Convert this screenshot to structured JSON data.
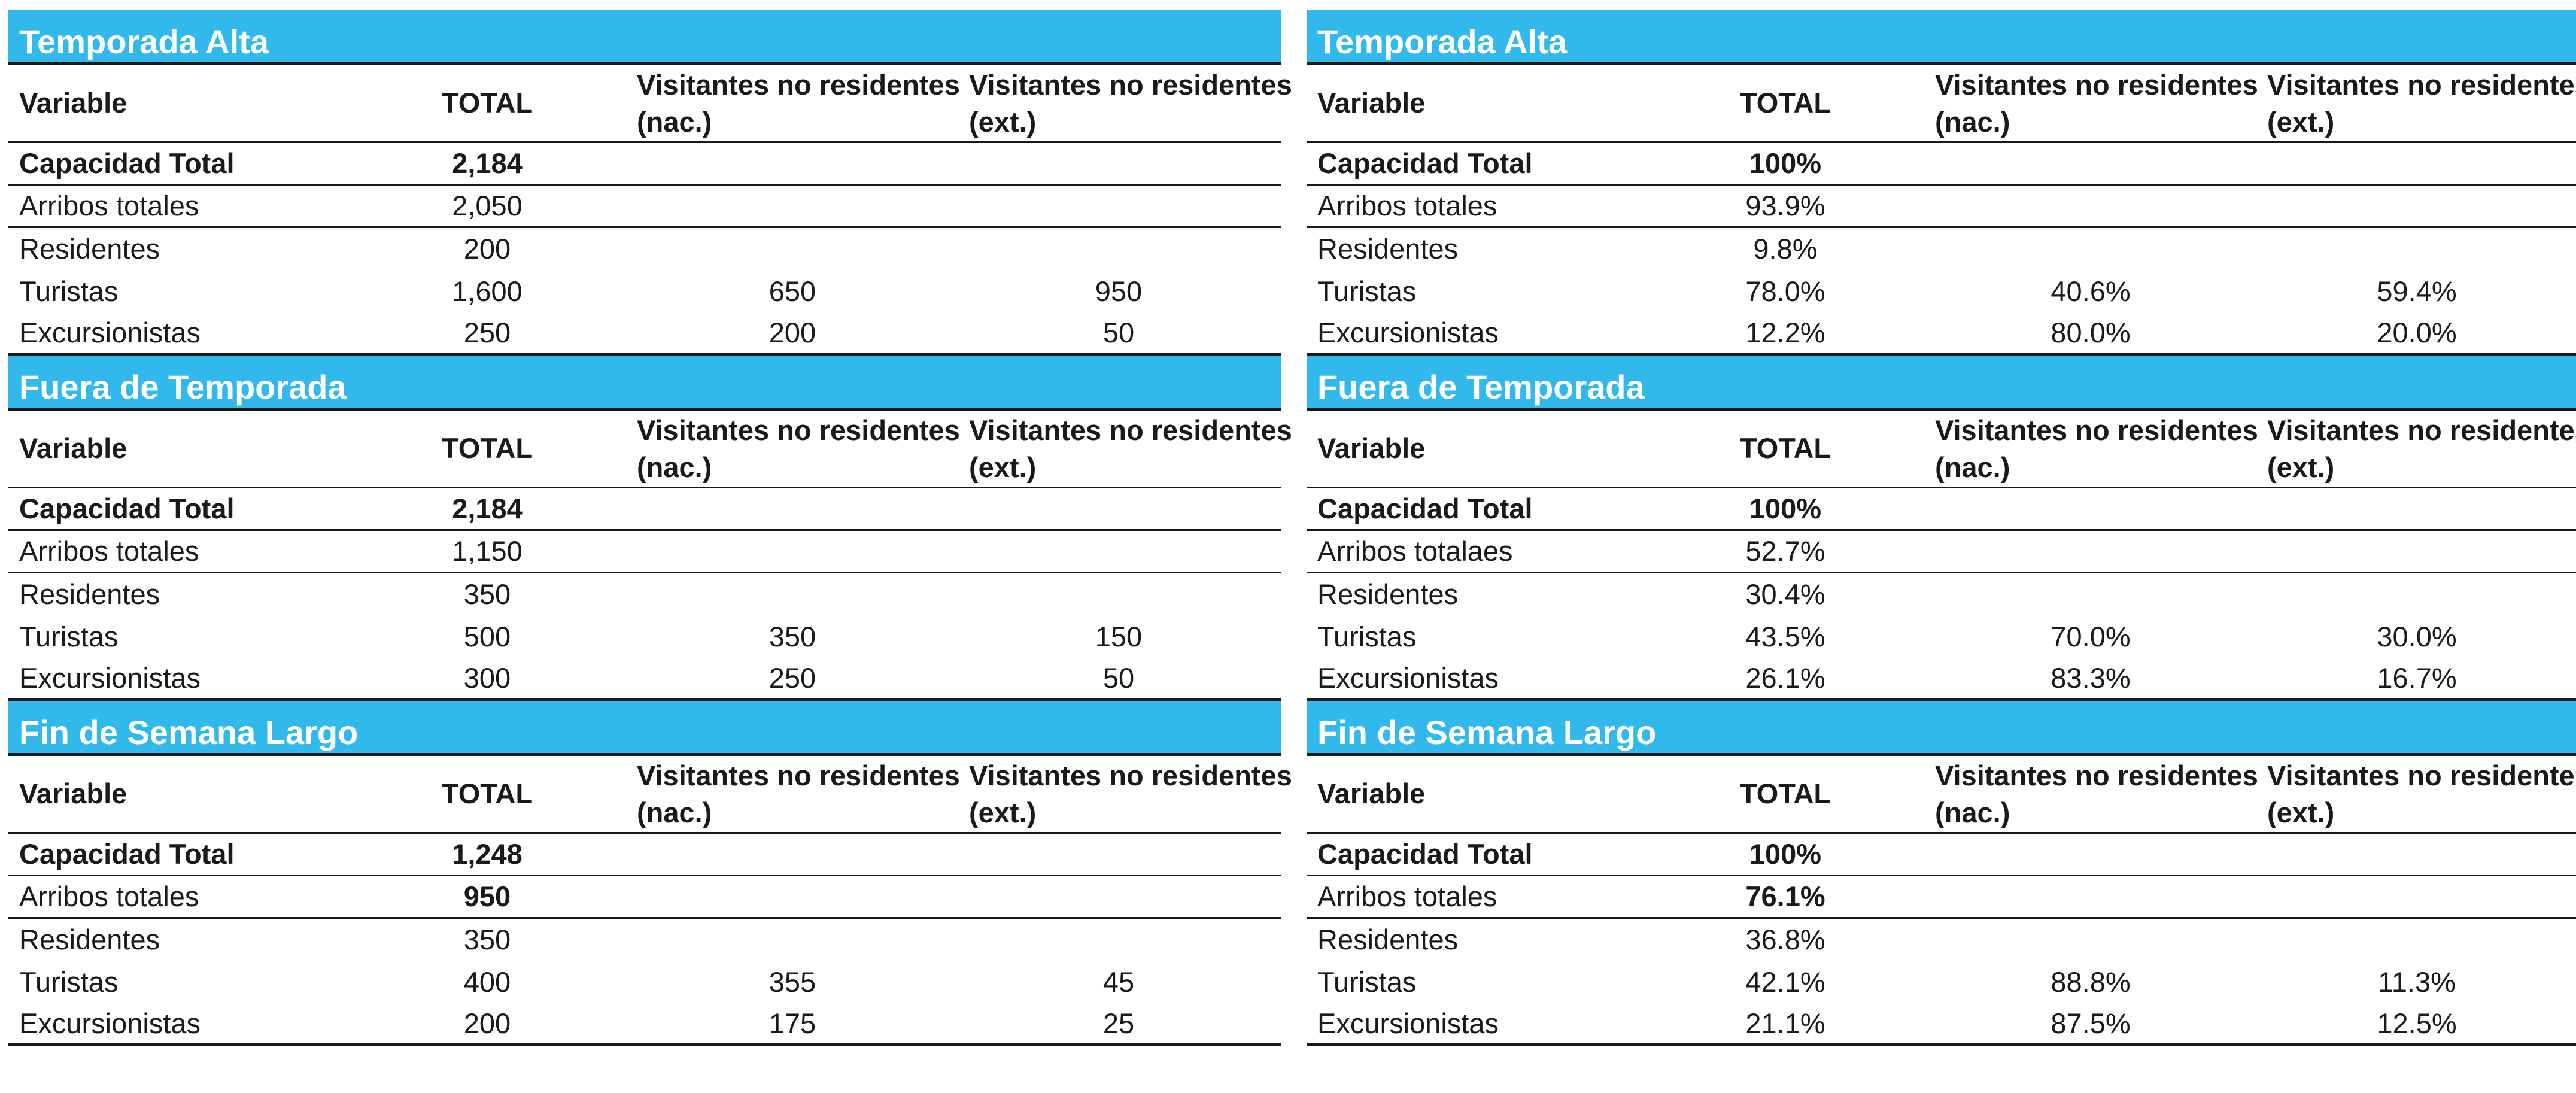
{
  "header": {
    "variable": "Variable",
    "total": "TOTAL",
    "nac": "Visitantes no residentes (nac.)",
    "ext": "Visitantes no residentes (ext.)"
  },
  "left": {
    "sections": [
      {
        "title": "Temporada Alta",
        "rows": [
          {
            "label": "Capacidad Total",
            "total": "2,184",
            "nac": "",
            "ext": ""
          },
          {
            "label": "Arribos totales",
            "total": "2,050",
            "nac": "",
            "ext": ""
          },
          {
            "label": "Residentes",
            "total": "200",
            "nac": "",
            "ext": ""
          },
          {
            "label": "Turistas",
            "total": "1,600",
            "nac": "650",
            "ext": "950"
          },
          {
            "label": "Excursionistas",
            "total": "250",
            "nac": "200",
            "ext": "50"
          }
        ]
      },
      {
        "title": "Fuera de Temporada",
        "rows": [
          {
            "label": "Capacidad Total",
            "total": "2,184",
            "nac": "",
            "ext": ""
          },
          {
            "label": "Arribos totales",
            "total": "1,150",
            "nac": "",
            "ext": ""
          },
          {
            "label": "Residentes",
            "total": "350",
            "nac": "",
            "ext": ""
          },
          {
            "label": "Turistas",
            "total": "500",
            "nac": "350",
            "ext": "150"
          },
          {
            "label": "Excursionistas",
            "total": "300",
            "nac": "250",
            "ext": "50"
          }
        ]
      },
      {
        "title": "Fin de Semana Largo",
        "rows": [
          {
            "label": "Capacidad Total",
            "total": "1,248",
            "nac": "",
            "ext": ""
          },
          {
            "label": "Arribos totales",
            "total": "950",
            "nac": "",
            "ext": ""
          },
          {
            "label": "Residentes",
            "total": "350",
            "nac": "",
            "ext": ""
          },
          {
            "label": "Turistas",
            "total": "400",
            "nac": "355",
            "ext": "45"
          },
          {
            "label": "Excursionistas",
            "total": "200",
            "nac": "175",
            "ext": "25"
          }
        ]
      }
    ]
  },
  "right": {
    "sections": [
      {
        "title": "Temporada Alta",
        "rows": [
          {
            "label": "Capacidad Total",
            "total": "100%",
            "nac": "",
            "ext": ""
          },
          {
            "label": "Arribos totales",
            "total": "93.9%",
            "nac": "",
            "ext": ""
          },
          {
            "label": "Residentes",
            "total": "9.8%",
            "nac": "",
            "ext": ""
          },
          {
            "label": "Turistas",
            "total": "78.0%",
            "nac": "40.6%",
            "ext": "59.4%"
          },
          {
            "label": "Excursionistas",
            "total": "12.2%",
            "nac": "80.0%",
            "ext": "20.0%"
          }
        ]
      },
      {
        "title": "Fuera de Temporada",
        "rows": [
          {
            "label": "Capacidad Total",
            "total": "100%",
            "nac": "",
            "ext": ""
          },
          {
            "label": "Arribos totalaes",
            "total": "52.7%",
            "nac": "",
            "ext": ""
          },
          {
            "label": "Residentes",
            "total": "30.4%",
            "nac": "",
            "ext": ""
          },
          {
            "label": "Turistas",
            "total": "43.5%",
            "nac": "70.0%",
            "ext": "30.0%"
          },
          {
            "label": "Excursionistas",
            "total": "26.1%",
            "nac": "83.3%",
            "ext": "16.7%"
          }
        ]
      },
      {
        "title": "Fin de Semana Largo",
        "rows": [
          {
            "label": "Capacidad Total",
            "total": "100%",
            "nac": "",
            "ext": ""
          },
          {
            "label": "Arribos totales",
            "total": "76.1%",
            "nac": "",
            "ext": ""
          },
          {
            "label": "Residentes",
            "total": "36.8%",
            "nac": "",
            "ext": ""
          },
          {
            "label": "Turistas",
            "total": "42.1%",
            "nac": "88.8%",
            "ext": "11.3%"
          },
          {
            "label": "Excursionistas",
            "total": "21.1%",
            "nac": "87.5%",
            "ext": "12.5%"
          }
        ]
      }
    ]
  }
}
